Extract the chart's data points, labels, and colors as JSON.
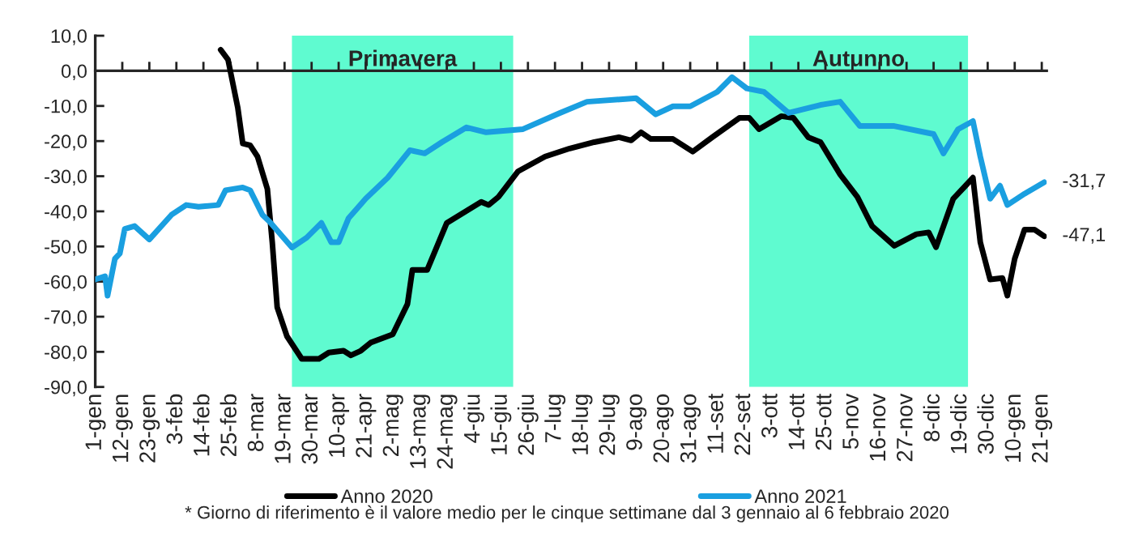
{
  "chart_data": {
    "type": "line",
    "xlim": [
      "2021-01-01",
      "2022-01-23"
    ],
    "xticks": [
      {
        "value": "2021-01-01",
        "label": "1-gen"
      },
      {
        "value": "2021-01-12",
        "label": "12-gen"
      },
      {
        "value": "2021-01-23",
        "label": "23-gen"
      },
      {
        "value": "2021-02-03",
        "label": "3-feb"
      },
      {
        "value": "2021-02-14",
        "label": "14-feb"
      },
      {
        "value": "2021-02-25",
        "label": "25-feb"
      },
      {
        "value": "2021-03-08",
        "label": "8-mar"
      },
      {
        "value": "2021-03-19",
        "label": "19-mar"
      },
      {
        "value": "2021-03-30",
        "label": "30-mar"
      },
      {
        "value": "2021-04-10",
        "label": "10-apr"
      },
      {
        "value": "2021-04-21",
        "label": "21-apr"
      },
      {
        "value": "2021-05-02",
        "label": "2-mag"
      },
      {
        "value": "2021-05-13",
        "label": "13-mag"
      },
      {
        "value": "2021-05-24",
        "label": "24-mag"
      },
      {
        "value": "2021-06-04",
        "label": "4-giu"
      },
      {
        "value": "2021-06-15",
        "label": "15-giu"
      },
      {
        "value": "2021-06-26",
        "label": "26-giu"
      },
      {
        "value": "2021-07-07",
        "label": "7-lug"
      },
      {
        "value": "2021-07-18",
        "label": "18-lug"
      },
      {
        "value": "2021-07-29",
        "label": "29-lug"
      },
      {
        "value": "2021-08-09",
        "label": "9-ago"
      },
      {
        "value": "2021-08-20",
        "label": "20-ago"
      },
      {
        "value": "2021-08-31",
        "label": "31-ago"
      },
      {
        "value": "2021-09-11",
        "label": "11-set"
      },
      {
        "value": "2021-09-22",
        "label": "22-set"
      },
      {
        "value": "2021-10-03",
        "label": "3-ott"
      },
      {
        "value": "2021-10-14",
        "label": "14-ott"
      },
      {
        "value": "2021-10-25",
        "label": "25-ott"
      },
      {
        "value": "2021-11-05",
        "label": "5-nov"
      },
      {
        "value": "2021-11-16",
        "label": "16-nov"
      },
      {
        "value": "2021-11-27",
        "label": "27-nov"
      },
      {
        "value": "2021-12-08",
        "label": "8-dic"
      },
      {
        "value": "2021-12-19",
        "label": "19-dic"
      },
      {
        "value": "2021-12-30",
        "label": "30-dic"
      },
      {
        "value": "2022-01-10",
        "label": "10-gen"
      },
      {
        "value": "2022-01-21",
        "label": "21-gen"
      }
    ],
    "ylim": [
      -90,
      10
    ],
    "yticks": [
      {
        "value": 10,
        "label": "10,0"
      },
      {
        "value": 0,
        "label": "0,0"
      },
      {
        "value": -10,
        "label": "-10,0"
      },
      {
        "value": -20,
        "label": "-20,0"
      },
      {
        "value": -30,
        "label": "-30,0"
      },
      {
        "value": -40,
        "label": "-40,0"
      },
      {
        "value": -50,
        "label": "-50,0"
      },
      {
        "value": -60,
        "label": "-60,0"
      },
      {
        "value": -70,
        "label": "-70,0"
      },
      {
        "value": -80,
        "label": "-80,0"
      },
      {
        "value": -90,
        "label": "-90,0"
      }
    ],
    "legend": "bottom",
    "bands": [
      {
        "axis": "x",
        "from": "2021-03-22",
        "to": "2021-06-20",
        "label": "Primavera",
        "color": "#5ffbd0"
      },
      {
        "axis": "x",
        "from": "2021-09-24",
        "to": "2021-12-22",
        "label": "Autunno",
        "color": "#5ffbd0"
      }
    ],
    "series": [
      {
        "name": "Anno 2020",
        "color": "#000000",
        "x": [
          "2021-02-21",
          "2021-02-24",
          "2021-02-28",
          "2021-03-02",
          "2021-03-05",
          "2021-03-08",
          "2021-03-12",
          "2021-03-14",
          "2021-03-16",
          "2021-03-20",
          "2021-03-26",
          "2021-04-02",
          "2021-04-06",
          "2021-04-12",
          "2021-04-15",
          "2021-04-19",
          "2021-04-23",
          "2021-05-02",
          "2021-05-08",
          "2021-05-10",
          "2021-05-16",
          "2021-05-24",
          "2021-06-07",
          "2021-06-10",
          "2021-06-14",
          "2021-06-22",
          "2021-07-03",
          "2021-07-13",
          "2021-07-23",
          "2021-08-02",
          "2021-08-07",
          "2021-08-11",
          "2021-08-15",
          "2021-08-24",
          "2021-09-01",
          "2021-09-09",
          "2021-09-20",
          "2021-09-24",
          "2021-09-28",
          "2021-10-07",
          "2021-10-12",
          "2021-10-18",
          "2021-10-23",
          "2021-10-31",
          "2021-11-07",
          "2021-11-13",
          "2021-11-22",
          "2021-12-01",
          "2021-12-06",
          "2021-12-09",
          "2021-12-16",
          "2021-12-21",
          "2021-12-24",
          "2021-12-27",
          "2021-12-31",
          "2022-01-05",
          "2022-01-07",
          "2022-01-10",
          "2022-01-14",
          "2022-01-18",
          "2022-01-22"
        ],
        "values": [
          6,
          3.2,
          -10.6,
          -20.7,
          -21.2,
          -24.4,
          -33.6,
          -48.8,
          -67.3,
          -75.6,
          -82,
          -82,
          -80.2,
          -79.7,
          -81,
          -79.7,
          -77.4,
          -75,
          -66.4,
          -56.7,
          -56.7,
          -43.3,
          -37.3,
          -38.2,
          -35.9,
          -28.6,
          -24.4,
          -22.1,
          -20.3,
          -18.9,
          -19.8,
          -17.5,
          -19.4,
          -19.4,
          -23,
          -18.9,
          -13.4,
          -13.4,
          -16.6,
          -12.9,
          -13.4,
          -18.9,
          -20.3,
          -29.5,
          -35.9,
          -44.2,
          -49.8,
          -46.5,
          -46,
          -50.2,
          -36.4,
          -32.7,
          -30.4,
          -48.8,
          -59.4,
          -59,
          -64,
          -53.5,
          -45.2,
          -45.2,
          -47.1
        ]
      },
      {
        "name": "Anno 2021",
        "color": "#1a9fe0",
        "x": [
          "2021-01-01",
          "2021-01-05",
          "2021-01-06",
          "2021-01-09",
          "2021-01-11",
          "2021-01-13",
          "2021-01-17",
          "2021-01-23",
          "2021-02-01",
          "2021-02-07",
          "2021-02-12",
          "2021-02-20",
          "2021-02-23",
          "2021-03-02",
          "2021-03-05",
          "2021-03-10",
          "2021-03-13",
          "2021-03-22",
          "2021-03-28",
          "2021-04-03",
          "2021-04-07",
          "2021-04-10",
          "2021-04-14",
          "2021-04-21",
          "2021-04-30",
          "2021-05-09",
          "2021-05-15",
          "2021-05-22",
          "2021-06-01",
          "2021-06-09",
          "2021-06-24",
          "2021-07-09",
          "2021-07-20",
          "2021-08-09",
          "2021-08-17",
          "2021-08-24",
          "2021-08-31",
          "2021-09-11",
          "2021-09-17",
          "2021-09-23",
          "2021-09-30",
          "2021-10-10",
          "2021-10-23",
          "2021-10-31",
          "2021-11-08",
          "2021-11-22",
          "2021-12-08",
          "2021-12-12",
          "2021-12-18",
          "2021-12-24",
          "2021-12-27",
          "2021-12-31",
          "2022-01-04",
          "2022-01-07",
          "2022-01-14",
          "2022-01-22"
        ],
        "values": [
          -59.4,
          -58.5,
          -64,
          -53.5,
          -52,
          -45,
          -44.2,
          -48,
          -41,
          -38.2,
          -38.7,
          -38.2,
          -34,
          -33.2,
          -34,
          -41,
          -43,
          -50.3,
          -47.5,
          -43.3,
          -48.8,
          -48.8,
          -42,
          -36.4,
          -30.4,
          -22.6,
          -23.5,
          -20.3,
          -16.1,
          -17.5,
          -16.6,
          -12,
          -8.8,
          -7.8,
          -12.4,
          -10.1,
          -10.1,
          -6,
          -1.8,
          -5,
          -6,
          -12,
          -9.7,
          -8.8,
          -15.7,
          -15.7,
          -18,
          -23.5,
          -16.6,
          -14.3,
          -24.4,
          -36.4,
          -32.7,
          -38.2,
          -35,
          -31.7
        ]
      }
    ],
    "annotations": [
      {
        "text": "-31,7",
        "x": "2022-01-22",
        "y": -31.7
      },
      {
        "text": "-47,1",
        "x": "2022-01-22",
        "y": -47.1
      },
      "* Giorno di riferimento è il valore medio per le cinque settimane dal 3 gennaio al 6 febbraio 2020"
    ]
  }
}
